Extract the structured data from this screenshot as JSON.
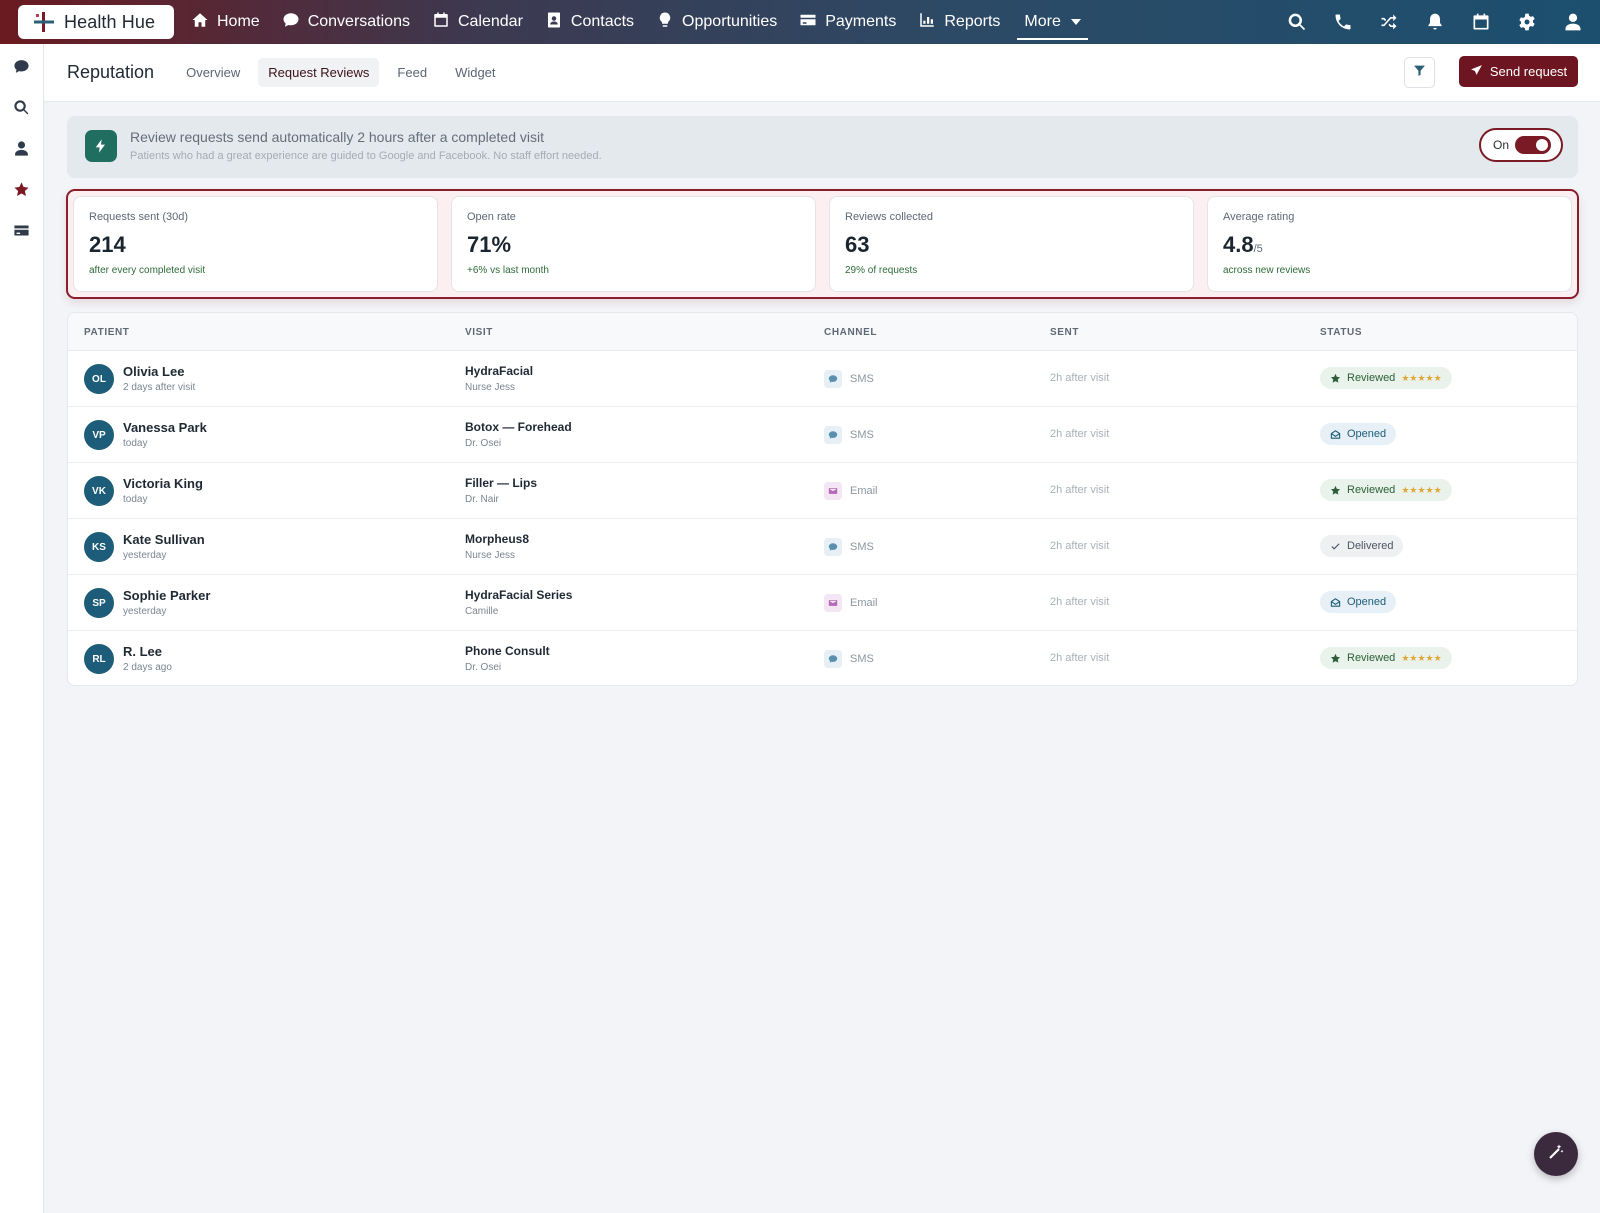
{
  "brand": {
    "name": "Health Hue"
  },
  "nav": [
    {
      "label": "Home",
      "icon": "home-icon"
    },
    {
      "label": "Conversations",
      "icon": "chat-icon"
    },
    {
      "label": "Calendar",
      "icon": "calendar-icon"
    },
    {
      "label": "Contacts",
      "icon": "contacts-icon"
    },
    {
      "label": "Opportunities",
      "icon": "lightbulb-icon"
    },
    {
      "label": "Payments",
      "icon": "credit-card-icon"
    },
    {
      "label": "Reports",
      "icon": "bar-chart-icon"
    },
    {
      "label": "More",
      "icon": "chevron-down-icon"
    }
  ],
  "top_icons": [
    "search-icon",
    "phone-icon",
    "shuffle-icon",
    "bell-icon",
    "calendar-icon",
    "gear-icon",
    "user-icon"
  ],
  "sidebar_icons": [
    "chat-icon",
    "search-icon",
    "user-icon",
    "star-icon",
    "credit-card-icon"
  ],
  "page": {
    "title": "Reputation",
    "tabs": [
      {
        "label": "Overview",
        "active": false
      },
      {
        "label": "Request Reviews",
        "active": true
      },
      {
        "label": "Feed",
        "active": false
      },
      {
        "label": "Widget",
        "active": false
      }
    ],
    "send_button": "Send request"
  },
  "banner": {
    "title": "Review requests send automatically 2 hours after a completed visit",
    "subtitle": "Patients who had a great experience are guided to Google and Facebook. No staff effort needed.",
    "toggle_label": "On",
    "toggle_on": true
  },
  "kpis": [
    {
      "label": "Requests sent (30d)",
      "value": "214",
      "unit": "",
      "note": "after every completed visit"
    },
    {
      "label": "Open rate",
      "value": "71%",
      "unit": "",
      "note": "+6% vs last month"
    },
    {
      "label": "Reviews collected",
      "value": "63",
      "unit": "",
      "note": "29% of requests"
    },
    {
      "label": "Average rating",
      "value": "4.8",
      "unit": "/5",
      "note": "across new reviews"
    }
  ],
  "table": {
    "headers": {
      "patient": "PATIENT",
      "visit": "VISIT",
      "channel": "CHANNEL",
      "sent": "SENT",
      "status": "STATUS"
    },
    "rows": [
      {
        "initials": "OL",
        "name": "Olivia Lee",
        "when": "2 days after visit",
        "visit": "HydraFacial",
        "provider": "Nurse Jess",
        "channel": "SMS",
        "sent": "2h after visit",
        "status": "Reviewed",
        "stars": "★★★★★"
      },
      {
        "initials": "VP",
        "name": "Vanessa Park",
        "when": "today",
        "visit": "Botox — Forehead",
        "provider": "Dr. Osei",
        "channel": "SMS",
        "sent": "2h after visit",
        "status": "Opened",
        "stars": ""
      },
      {
        "initials": "VK",
        "name": "Victoria King",
        "when": "today",
        "visit": "Filler — Lips",
        "provider": "Dr. Nair",
        "channel": "Email",
        "sent": "2h after visit",
        "status": "Reviewed",
        "stars": "★★★★★"
      },
      {
        "initials": "KS",
        "name": "Kate Sullivan",
        "when": "yesterday",
        "visit": "Morpheus8",
        "provider": "Nurse Jess",
        "channel": "SMS",
        "sent": "2h after visit",
        "status": "Delivered",
        "stars": ""
      },
      {
        "initials": "SP",
        "name": "Sophie Parker",
        "when": "yesterday",
        "visit": "HydraFacial Series",
        "provider": "Camille",
        "channel": "Email",
        "sent": "2h after visit",
        "status": "Opened",
        "stars": ""
      },
      {
        "initials": "RL",
        "name": "R. Lee",
        "when": "2 days ago",
        "visit": "Phone Consult",
        "provider": "Dr. Osei",
        "channel": "SMS",
        "sent": "2h after visit",
        "status": "Reviewed",
        "stars": "★★★★★"
      }
    ]
  },
  "colors": {
    "brand": "#6d1520",
    "accent": "#1d5d7a",
    "success": "#2b5e36",
    "star": "#e0a63a"
  },
  "fab_icon": "magic-wand-icon"
}
